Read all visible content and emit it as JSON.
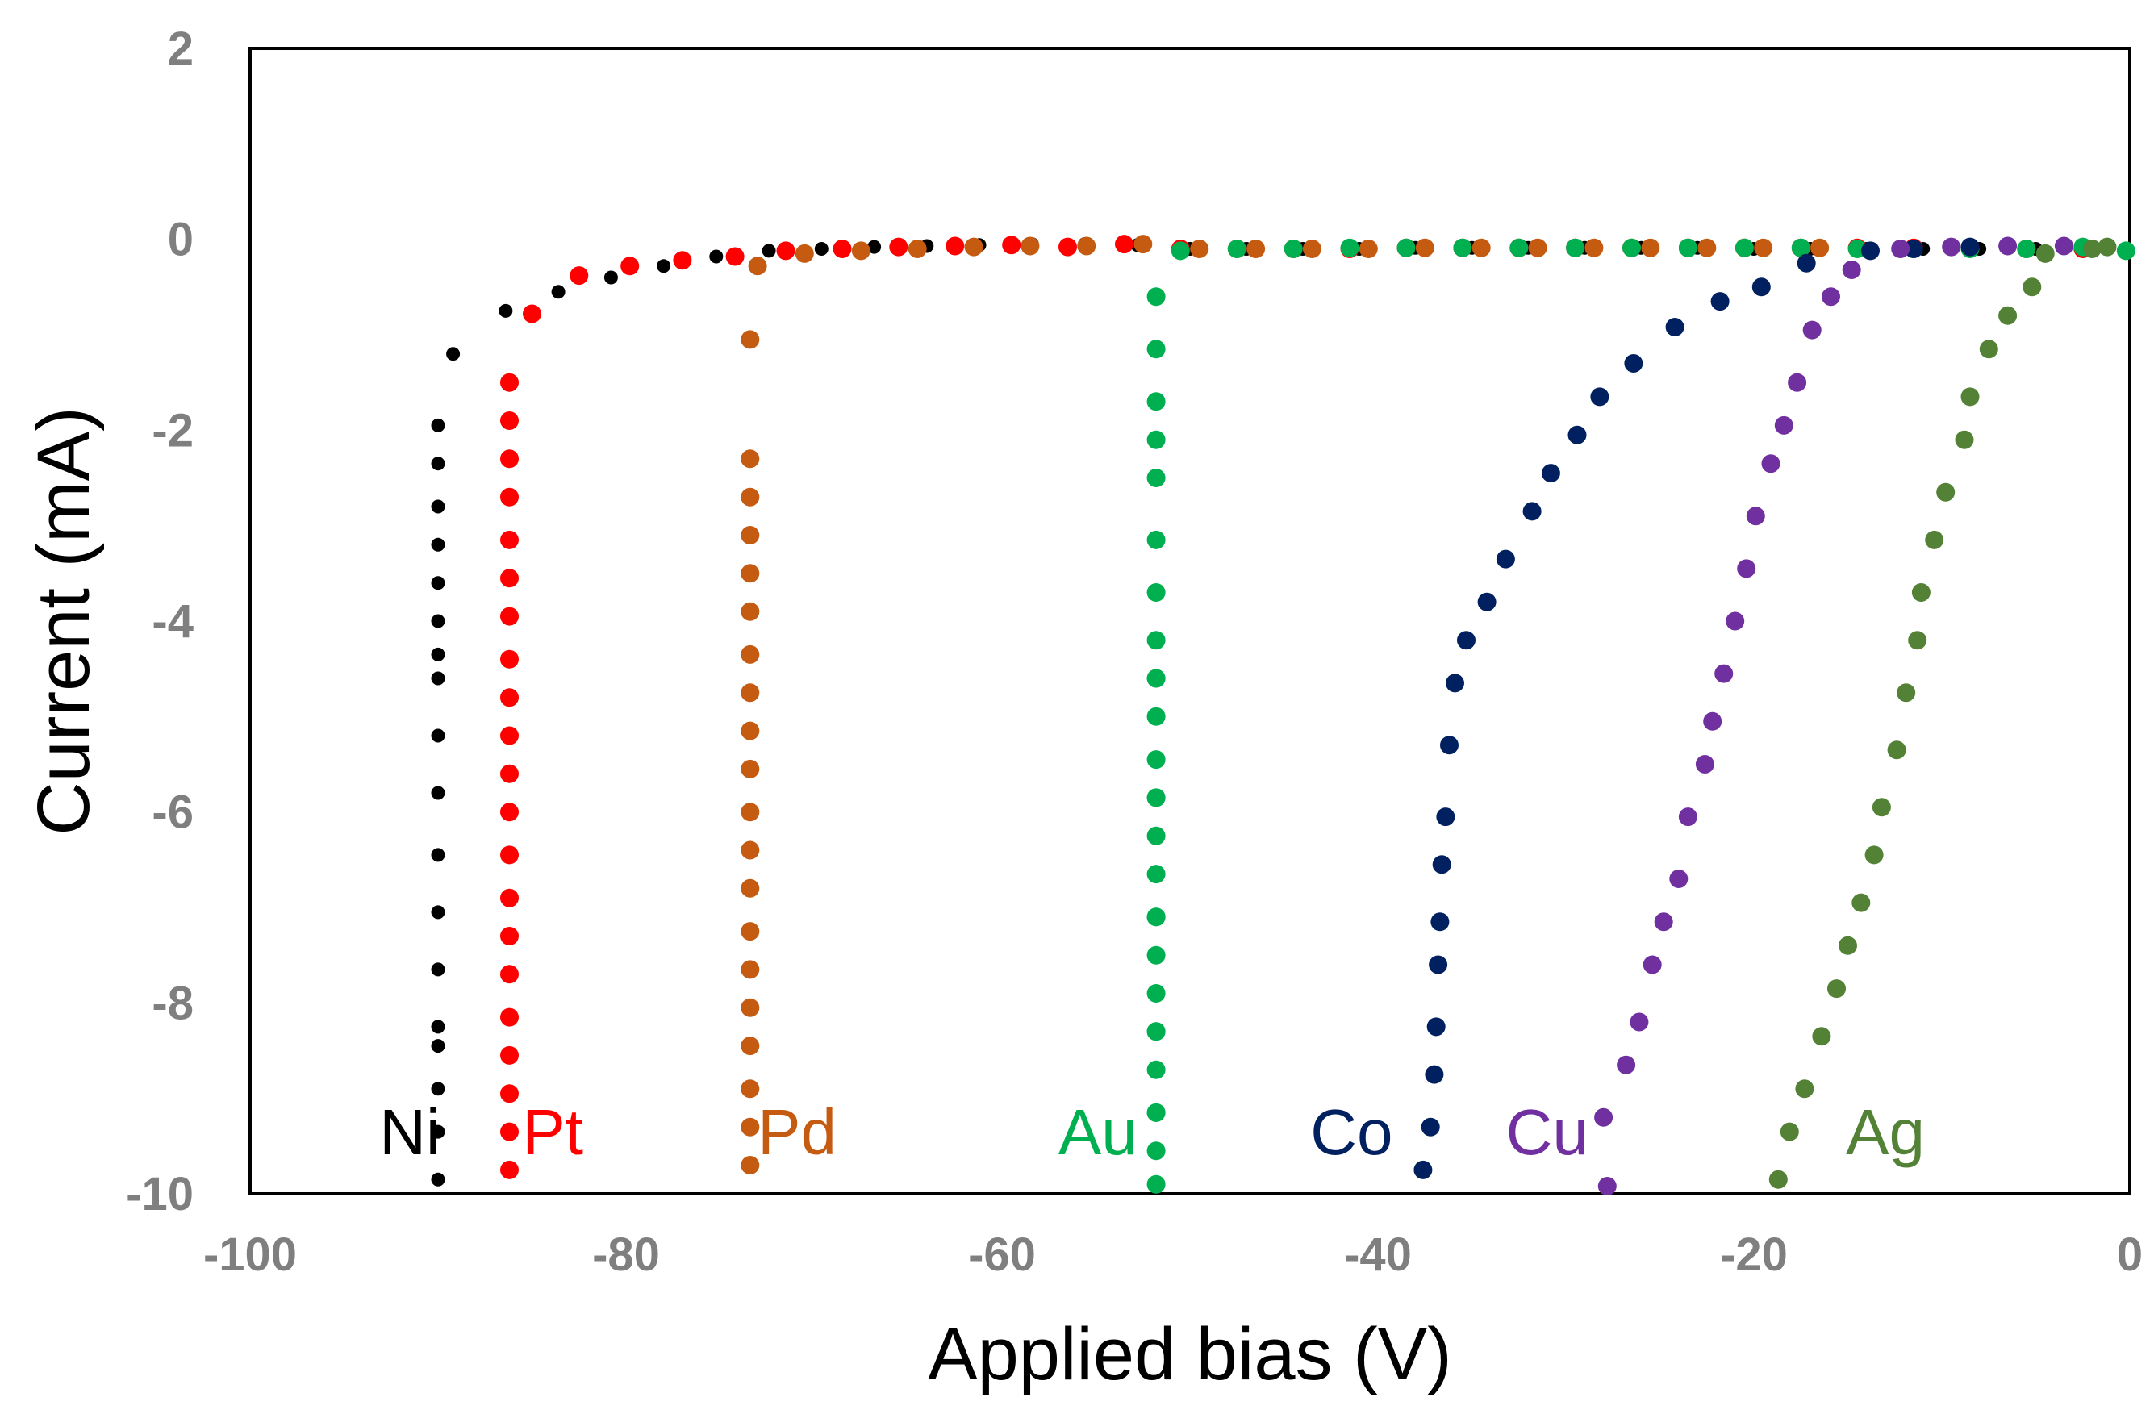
{
  "chart_data": {
    "type": "scatter",
    "title": "",
    "xlabel": "Applied bias (V)",
    "ylabel": "Current (mA)",
    "xlim": [
      -100,
      0
    ],
    "ylim": [
      -10,
      2
    ],
    "xticks": [
      -100,
      -80,
      -60,
      -40,
      -20,
      0
    ],
    "yticks": [
      2,
      0,
      -2,
      -4,
      -6,
      -8,
      -10
    ],
    "xtick_labels": [
      "-100",
      "-80",
      "-60",
      "-40",
      "-20",
      "0"
    ],
    "ytick_labels": [
      "2",
      "0",
      "-2",
      "-4",
      "-6",
      "-8",
      "-10"
    ],
    "grid": false,
    "legend": "inline labels along bottom",
    "series": [
      {
        "name": "Ni",
        "color": "#000000",
        "marker_size": "small",
        "x": [
          -90,
          -90,
          -90,
          -90,
          -90,
          -90,
          -90,
          -90,
          -90,
          -90,
          -90,
          -90,
          -90,
          -90,
          -90,
          -90,
          -90,
          -90,
          -89.2,
          -86.4,
          -83.6,
          -80.8,
          -78,
          -75.2,
          -72.4,
          -69.6,
          -66.8,
          -64,
          -61.2,
          -58.4,
          -55.6,
          -52.8,
          -50,
          -47,
          -44,
          -41,
          -38,
          -35,
          -32,
          -29,
          -26,
          -23,
          -20,
          -17,
          -14,
          -11,
          -8,
          -5,
          -2
        ],
        "y": [
          -9.85,
          -9.35,
          -8.9,
          -8.45,
          -8.25,
          -7.65,
          -7.05,
          -6.45,
          -5.8,
          -5.2,
          -4.6,
          -4.35,
          -4.0,
          -3.6,
          -3.2,
          -2.8,
          -2.35,
          -1.95,
          -1.2,
          -0.75,
          -0.55,
          -0.4,
          -0.28,
          -0.18,
          -0.12,
          -0.1,
          -0.08,
          -0.07,
          -0.06,
          -0.05,
          -0.05,
          -0.06,
          -0.1,
          -0.1,
          -0.1,
          -0.1,
          -0.09,
          -0.09,
          -0.09,
          -0.09,
          -0.09,
          -0.09,
          -0.1,
          -0.1,
          -0.1,
          -0.1,
          -0.1,
          -0.1,
          -0.12
        ]
      },
      {
        "name": "Pt",
        "color": "#ff0000",
        "marker_size": "large",
        "x": [
          -86.2,
          -86.2,
          -86.2,
          -86.2,
          -86.2,
          -86.2,
          -86.2,
          -86.2,
          -86.2,
          -86.2,
          -86.2,
          -86.2,
          -86.2,
          -86.2,
          -86.2,
          -86.2,
          -86.2,
          -86.2,
          -86.2,
          -86.2,
          -86.2,
          -85,
          -82.5,
          -79.8,
          -77,
          -74.2,
          -71.5,
          -68.5,
          -65.5,
          -62.5,
          -59.5,
          -56.5,
          -53.5,
          -50.5,
          -47.5,
          -44.5,
          -41.5,
          -38.5,
          -35.5,
          -32.5,
          -29.5,
          -26.5,
          -23.5,
          -20.5,
          -17.5,
          -14.5,
          -11.5,
          -8.5,
          -5.5,
          -2.5
        ],
        "y": [
          -9.75,
          -9.35,
          -8.95,
          -8.55,
          -8.15,
          -7.7,
          -7.3,
          -6.9,
          -6.45,
          -6.0,
          -5.6,
          -5.2,
          -4.8,
          -4.4,
          -3.95,
          -3.55,
          -3.15,
          -2.7,
          -2.3,
          -1.9,
          -1.5,
          -0.78,
          -0.38,
          -0.28,
          -0.22,
          -0.18,
          -0.12,
          -0.1,
          -0.08,
          -0.07,
          -0.06,
          -0.08,
          -0.05,
          -0.1,
          -0.1,
          -0.1,
          -0.1,
          -0.09,
          -0.09,
          -0.09,
          -0.09,
          -0.09,
          -0.09,
          -0.09,
          -0.09,
          -0.09,
          -0.09,
          -0.09,
          -0.1,
          -0.1
        ]
      },
      {
        "name": "Pd",
        "color": "#c55a11",
        "marker_size": "large",
        "x": [
          -73.4,
          -73.4,
          -73.4,
          -73.4,
          -73.4,
          -73.4,
          -73.4,
          -73.4,
          -73.4,
          -73.4,
          -73.4,
          -73.4,
          -73.4,
          -73.4,
          -73.4,
          -73.4,
          -73.4,
          -73.4,
          -73.4,
          -73.4,
          -73,
          -70.5,
          -67.5,
          -64.5,
          -61.5,
          -58.5,
          -55.5,
          -52.5,
          -49.5,
          -46.5,
          -43.5,
          -40.5,
          -37.5,
          -34.5,
          -31.5,
          -28.5,
          -25.5,
          -22.5,
          -19.5,
          -16.5
        ],
        "y": [
          -9.7,
          -9.3,
          -8.9,
          -8.45,
          -8.05,
          -7.65,
          -7.25,
          -6.8,
          -6.4,
          -6.0,
          -5.55,
          -5.15,
          -4.75,
          -4.35,
          -3.9,
          -3.5,
          -3.1,
          -2.7,
          -2.3,
          -1.05,
          -0.28,
          -0.15,
          -0.12,
          -0.1,
          -0.08,
          -0.07,
          -0.07,
          -0.05,
          -0.1,
          -0.1,
          -0.1,
          -0.1,
          -0.09,
          -0.09,
          -0.09,
          -0.09,
          -0.09,
          -0.09,
          -0.09,
          -0.09
        ]
      },
      {
        "name": "Au",
        "color": "#00b050",
        "marker_size": "large",
        "x": [
          -51.8,
          -51.8,
          -51.8,
          -51.8,
          -51.8,
          -51.8,
          -51.8,
          -51.8,
          -51.8,
          -51.8,
          -51.8,
          -51.8,
          -51.8,
          -51.8,
          -51.8,
          -51.8,
          -51.8,
          -51.8,
          -51.8,
          -51.8,
          -51.8,
          -51.8,
          -51.8,
          -51.8,
          -51.8,
          -51.8,
          -51.8,
          -50.5,
          -47.5,
          -44.5,
          -41.5,
          -38.5,
          -35.5,
          -32.5,
          -29.5,
          -26.5,
          -23.5,
          -20.5,
          -17.5,
          -14.5,
          -11.5,
          -8.5,
          -5.5,
          -2.5,
          -0.2
        ],
        "y": [
          -9.9,
          -9.55,
          -9.15,
          -8.7,
          -8.3,
          -7.9,
          -7.5,
          -7.1,
          -6.65,
          -6.25,
          -5.85,
          -5.45,
          -5.0,
          -4.6,
          -4.2,
          -3.7,
          -3.15,
          -2.5,
          -2.1,
          -1.7,
          -1.15,
          -0.6,
          -4.6,
          -5.85,
          -7.1,
          -8.3,
          -9.15,
          -0.12,
          -0.1,
          -0.1,
          -0.09,
          -0.09,
          -0.09,
          -0.09,
          -0.09,
          -0.09,
          -0.09,
          -0.09,
          -0.09,
          -0.1,
          -0.1,
          -0.1,
          -0.1,
          -0.08,
          -0.12
        ]
      },
      {
        "name": "Co",
        "color": "#002060",
        "marker_size": "large",
        "x": [
          -37.6,
          -37.2,
          -37,
          -36.9,
          -36.8,
          -36.7,
          -36.6,
          -36.4,
          -36.2,
          -35.9,
          -35.3,
          -34.2,
          -33.2,
          -31.8,
          -30.8,
          -29.4,
          -28.2,
          -26.4,
          -24.2,
          -21.8,
          -19.6,
          -17.2,
          -13.8,
          -11.5,
          -8.5
        ],
        "y": [
          -9.75,
          -9.3,
          -8.75,
          -8.25,
          -7.6,
          -7.15,
          -6.55,
          -6.05,
          -5.3,
          -4.65,
          -4.2,
          -3.8,
          -3.35,
          -2.85,
          -2.45,
          -2.05,
          -1.65,
          -1.3,
          -0.92,
          -0.65,
          -0.5,
          -0.25,
          -0.12,
          -0.1,
          -0.08
        ]
      },
      {
        "name": "Cu",
        "color": "#7030a0",
        "marker_size": "large",
        "x": [
          -27.8,
          -28,
          -26.8,
          -26.1,
          -25.4,
          -24.8,
          -24,
          -23.5,
          -22.6,
          -22.2,
          -21.6,
          -21,
          -20.4,
          -19.9,
          -19.1,
          -18.4,
          -17.7,
          -16.9,
          -15.9,
          -14.8,
          -12.2,
          -9.5,
          -6.5,
          -3.5
        ],
        "y": [
          -9.92,
          -9.2,
          -8.65,
          -8.2,
          -7.6,
          -7.15,
          -6.7,
          -6.05,
          -5.5,
          -5.05,
          -4.55,
          -4.0,
          -3.45,
          -2.9,
          -2.35,
          -1.95,
          -1.5,
          -0.95,
          -0.6,
          -0.32,
          -0.1,
          -0.08,
          -0.07,
          -0.07
        ]
      },
      {
        "name": "Ag",
        "color": "#538135",
        "marker_size": "large",
        "x": [
          -18.7,
          -18.1,
          -17.3,
          -16.4,
          -15.6,
          -15,
          -14.3,
          -13.6,
          -13.2,
          -12.4,
          -11.9,
          -11.3,
          -11.1,
          -10.4,
          -9.8,
          -8.8,
          -8.5,
          -7.5,
          -6.5,
          -5.2,
          -4.5,
          -2,
          -1.2
        ],
        "y": [
          -9.85,
          -9.35,
          -8.9,
          -8.35,
          -7.85,
          -7.4,
          -6.95,
          -6.45,
          -5.95,
          -5.35,
          -4.75,
          -4.2,
          -3.7,
          -3.15,
          -2.65,
          -2.1,
          -1.65,
          -1.15,
          -0.8,
          -0.5,
          -0.15,
          -0.1,
          -0.08
        ]
      }
    ],
    "annotations": [
      {
        "text": "Ni",
        "color": "#000000",
        "x": -91.5
      },
      {
        "text": "Pt",
        "color": "#ff0000",
        "x": -83.9
      },
      {
        "text": "Pd",
        "color": "#c55a11",
        "x": -70.9
      },
      {
        "text": "Au",
        "color": "#00b050",
        "x": -54.9
      },
      {
        "text": "Co",
        "color": "#002060",
        "x": -41.4
      },
      {
        "text": "Cu",
        "color": "#7030a0",
        "x": -31.0
      },
      {
        "text": "Ag",
        "color": "#538135",
        "x": -13.0
      }
    ],
    "annotation_y": -9.35
  }
}
